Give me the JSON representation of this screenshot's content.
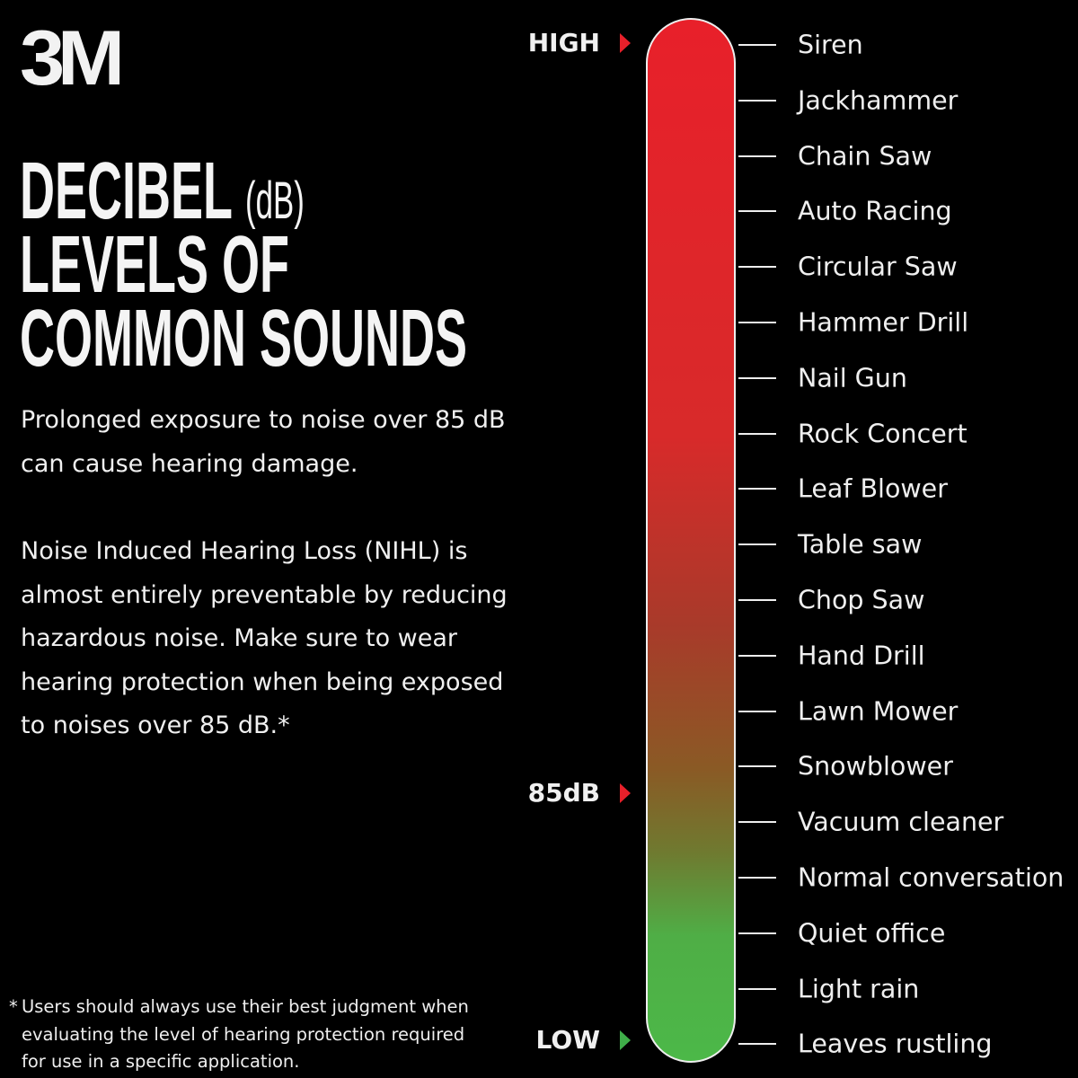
{
  "logo": {
    "text": "3M",
    "color": "#c8202a"
  },
  "title": {
    "line1": "DECIBEL",
    "line1_suffix": "(dB)",
    "line2": "LEVELS OF",
    "line3": "COMMON SOUNDS"
  },
  "paragraphs": [
    "Prolonged exposure to noise over 85 dB can cause hearing damage.",
    "Noise Induced Hearing Loss (NIHL) is almost entirely preventable by reducing hazardous noise.  Make sure to wear hearing protection when being exposed to noises over 85 dB.*"
  ],
  "footnote": {
    "mark": "*",
    "text": "Users should always use their best judgment when evaluating the level of hearing protection required for use in a specific application."
  },
  "scale": {
    "colors": {
      "high": "#e8202a",
      "mid": "#8a5a25",
      "low": "#4cb848"
    },
    "markers": [
      {
        "label": "HIGH",
        "color": "#e8202a"
      },
      {
        "label": "85dB",
        "color": "#e8202a"
      },
      {
        "label": "LOW",
        "color": "#3fae49"
      }
    ],
    "sounds": [
      "Siren",
      "Jackhammer",
      "Chain Saw",
      "Auto Racing",
      "Circular Saw",
      "Hammer Drill",
      "Nail Gun",
      "Rock Concert",
      "Leaf Blower",
      "Table saw",
      "Chop Saw",
      "Hand Drill",
      "Lawn Mower",
      "Snowblower",
      "Vacuum cleaner",
      "Normal conversation",
      "Quiet office",
      "Light rain",
      "Leaves rustling"
    ]
  }
}
